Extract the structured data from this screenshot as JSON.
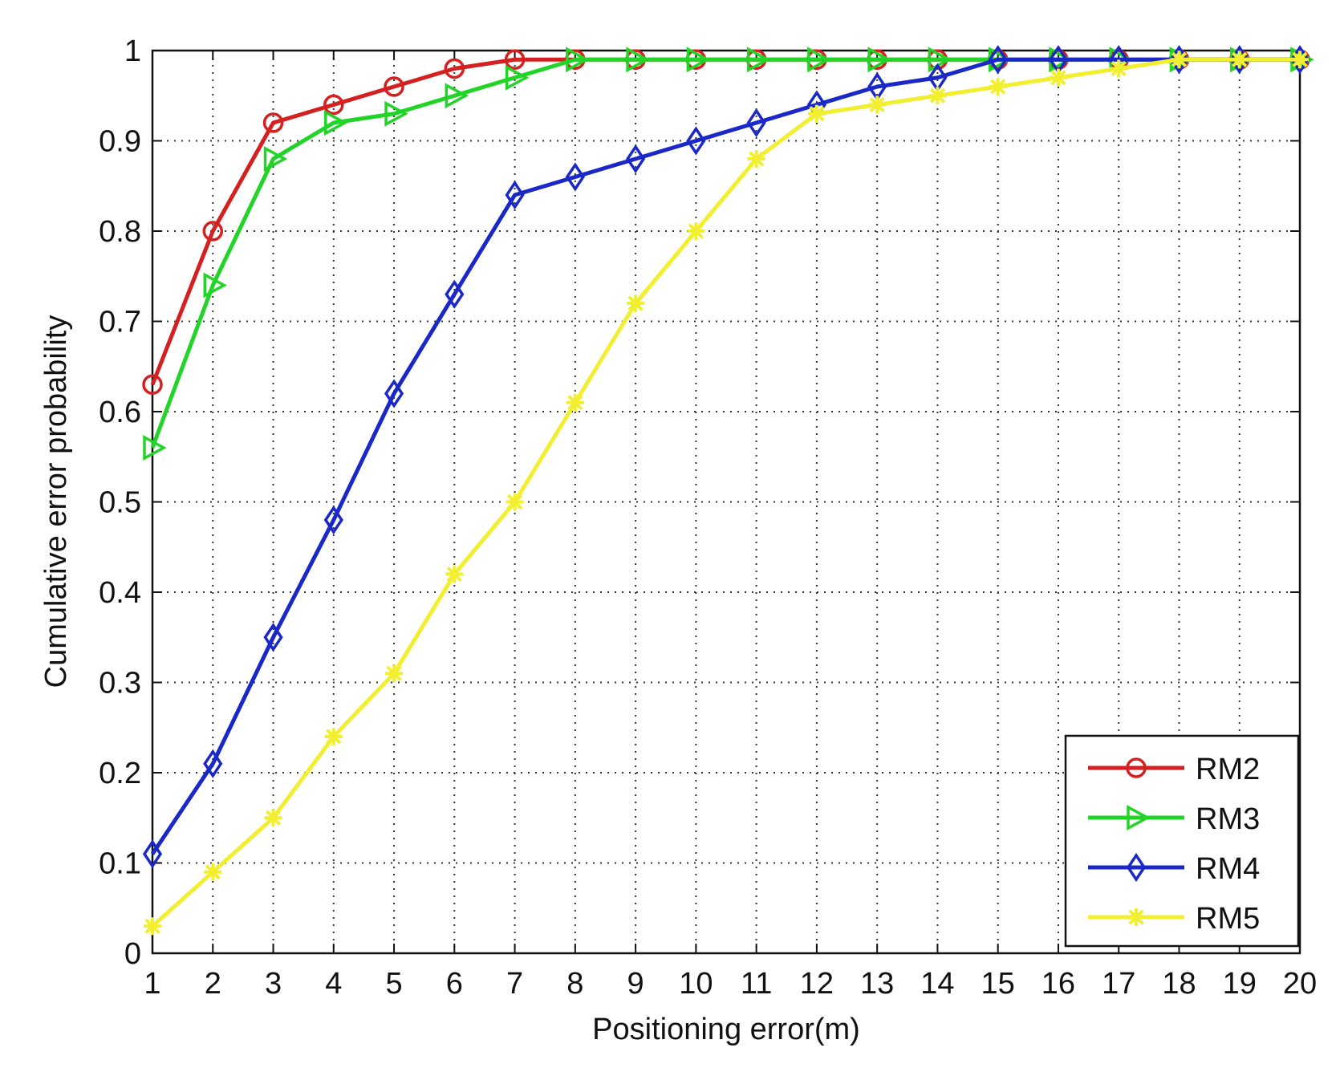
{
  "chart_data": {
    "type": "line",
    "title": "",
    "xlabel": "Positioning error(m)",
    "ylabel": "Cumulative error probability",
    "xlim": [
      1,
      20
    ],
    "ylim": [
      0,
      1
    ],
    "x": [
      1,
      2,
      3,
      4,
      5,
      6,
      7,
      8,
      9,
      10,
      11,
      12,
      13,
      14,
      15,
      16,
      17,
      18,
      19,
      20
    ],
    "xticks": [
      "1",
      "2",
      "3",
      "4",
      "5",
      "6",
      "7",
      "8",
      "9",
      "10",
      "11",
      "12",
      "13",
      "14",
      "15",
      "16",
      "17",
      "18",
      "19",
      "20"
    ],
    "yticks": [
      "0",
      "0.1",
      "0.2",
      "0.3",
      "0.4",
      "0.5",
      "0.6",
      "0.7",
      "0.8",
      "0.9",
      "1"
    ],
    "grid": true,
    "legend_position": "bottom-right",
    "series": [
      {
        "name": "RM2",
        "color": "#d42020",
        "marker": "circle",
        "values": [
          0.63,
          0.8,
          0.92,
          0.94,
          0.96,
          0.98,
          0.99,
          0.99,
          0.99,
          0.99,
          0.99,
          0.99,
          0.99,
          0.99,
          0.99,
          0.99,
          0.99,
          0.99,
          0.99,
          0.99
        ]
      },
      {
        "name": "RM3",
        "color": "#22d428",
        "marker": "triangle-right",
        "values": [
          0.56,
          0.74,
          0.88,
          0.92,
          0.93,
          0.95,
          0.97,
          0.99,
          0.99,
          0.99,
          0.99,
          0.99,
          0.99,
          0.99,
          0.99,
          0.99,
          0.99,
          0.99,
          0.99,
          0.99
        ]
      },
      {
        "name": "RM4",
        "color": "#1a28c8",
        "marker": "diamond",
        "values": [
          0.11,
          0.21,
          0.35,
          0.48,
          0.62,
          0.73,
          0.84,
          0.86,
          0.88,
          0.9,
          0.92,
          0.94,
          0.96,
          0.97,
          0.99,
          0.99,
          0.99,
          0.99,
          0.99,
          0.99
        ]
      },
      {
        "name": "RM5",
        "color": "#f2ee30",
        "marker": "star",
        "values": [
          0.03,
          0.09,
          0.15,
          0.24,
          0.31,
          0.42,
          0.5,
          0.61,
          0.72,
          0.8,
          0.88,
          0.93,
          0.94,
          0.95,
          0.96,
          0.97,
          0.98,
          0.99,
          0.99,
          0.99
        ]
      }
    ]
  }
}
